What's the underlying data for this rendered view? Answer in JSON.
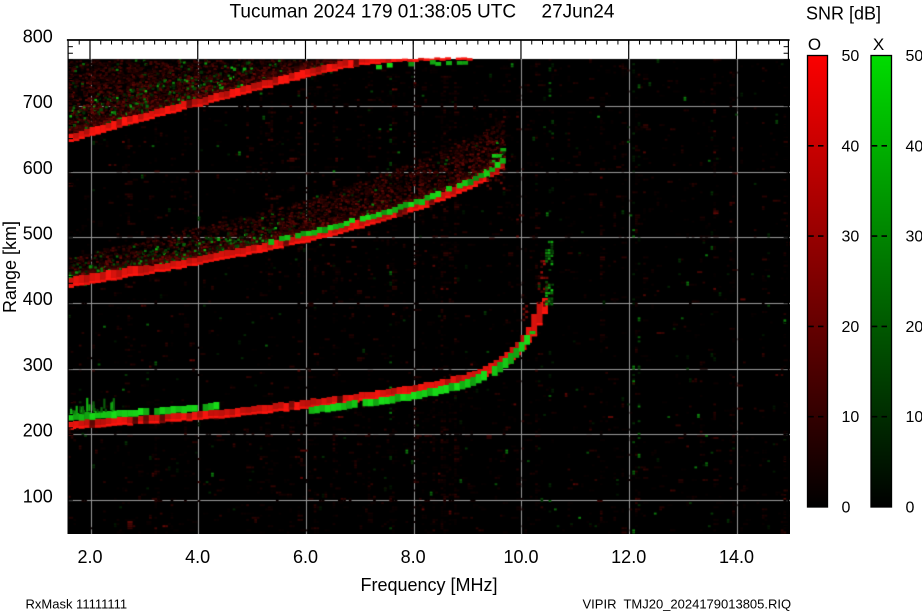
{
  "title": {
    "station_time": "Tucuman 2024 179 01:38:05 UTC",
    "date": "27Jun24"
  },
  "footer": {
    "rx_mask": "RxMask 11111111",
    "file_label": "VIPIR  TMJ20_2024179013805.RIQ"
  },
  "chart_data": {
    "type": "heatmap",
    "title": "Tucuman 2024 179 01:38:05 UTC   27Jun24",
    "xlabel": "Frequency [MHz]",
    "ylabel": "Range [km]",
    "xlim": [
      1.582,
      14.97
    ],
    "ylim": [
      48,
      771
    ],
    "axis_top_km": 800,
    "grid": "on",
    "xticks": [
      2,
      4,
      6,
      8,
      10,
      12,
      14
    ],
    "xtick_labels": [
      "2.0",
      "4.0",
      "6.0",
      "8.0",
      "10.0",
      "12.0",
      "14.0"
    ],
    "x_minor_step": 0.2,
    "yticks": [
      100,
      200,
      300,
      400,
      500,
      600,
      700,
      800
    ],
    "ytick_labels": [
      "100",
      "200",
      "300",
      "400",
      "500",
      "600",
      "700",
      "800"
    ],
    "y_minor_step": 10,
    "colorbar": {
      "title": "SNR [dB]",
      "range": [
        0,
        50
      ],
      "ticks": [
        0,
        10,
        20,
        30,
        40,
        50
      ],
      "tick_labels": [
        "0",
        "10",
        "20",
        "30",
        "40",
        "50"
      ],
      "o_label": "O",
      "x_label": "X",
      "o_color": "#fb0000",
      "x_color": "#00dc00",
      "bottom_color": "#000000"
    },
    "colors": {
      "background": "#000000",
      "grid": "#9a9a9a",
      "o_trace": "#e60000",
      "x_trace": "#1ed41e"
    },
    "traces": [
      {
        "name": "F first hop",
        "anchor": "center",
        "band_km": 12,
        "o_points": [
          [
            1.582,
            214
          ],
          [
            2,
            216.5
          ],
          [
            2.5,
            219.5
          ],
          [
            3,
            222.5
          ],
          [
            3.5,
            225.5
          ],
          [
            4,
            228.5
          ],
          [
            4.5,
            232
          ],
          [
            5,
            236
          ],
          [
            5.5,
            241
          ],
          [
            6,
            246
          ],
          [
            6.5,
            251
          ],
          [
            7,
            256.5
          ],
          [
            7.5,
            262
          ],
          [
            8,
            268
          ],
          [
            8.5,
            276
          ],
          [
            9,
            286
          ],
          [
            9.3,
            295
          ],
          [
            9.6,
            308
          ],
          [
            9.8,
            320
          ],
          [
            10,
            336
          ],
          [
            10.15,
            352
          ],
          [
            10.25,
            368
          ],
          [
            10.32,
            381
          ],
          [
            10.38,
            392
          ],
          [
            10.42,
            399
          ]
        ],
        "x_band_km": 10,
        "x_f_shift": -0.1,
        "x_segments": [
          {
            "f0": 1.582,
            "f1": 4.3,
            "offset_km": 11
          },
          {
            "f0": 6.05,
            "f1": 10.34,
            "offset_km": -11,
            "km_max": 358
          }
        ],
        "grass": {
          "f0": 1.582,
          "f1": 2.45,
          "km_above": 24
        }
      },
      {
        "name": "F second hop",
        "anchor": "bottom",
        "band_km": 11,
        "o_points": [
          [
            1.582,
            424
          ],
          [
            2,
            430
          ],
          [
            2.5,
            437
          ],
          [
            3,
            444
          ],
          [
            3.5,
            451
          ],
          [
            4,
            459
          ],
          [
            4.5,
            467
          ],
          [
            5,
            475
          ],
          [
            5.5,
            484
          ],
          [
            6,
            493
          ],
          [
            6.5,
            504
          ],
          [
            7,
            515
          ],
          [
            7.5,
            527
          ],
          [
            8,
            540
          ],
          [
            8.5,
            556
          ],
          [
            9,
            573
          ],
          [
            9.3,
            586
          ],
          [
            9.5,
            597
          ],
          [
            9.62,
            606
          ]
        ],
        "haze": {
          "km_at_fmin": 36,
          "km_at_fmax": 72,
          "fmax": 9.62,
          "density": 1.3,
          "green_p": 0.028
        },
        "x_line": {
          "f0": 5.3,
          "f1": 9.62,
          "offset_km": 9,
          "thick_km": 8
        },
        "x_speckles": {
          "f0": 1.582,
          "f1": 5.4,
          "km0": 2,
          "km1": 30
        },
        "x_tip": {
          "f0": 9.3,
          "f1": 9.62,
          "km0": 0,
          "km1": 26
        }
      },
      {
        "name": "F third hop",
        "anchor": "bottom",
        "band_km": 10,
        "o_points": [
          [
            1.582,
            645
          ],
          [
            2,
            655
          ],
          [
            2.5,
            667
          ],
          [
            3,
            679
          ],
          [
            3.5,
            690
          ],
          [
            4,
            700
          ],
          [
            4.5,
            711
          ],
          [
            5,
            722
          ],
          [
            5.5,
            733
          ],
          [
            6,
            744
          ],
          [
            6.5,
            754
          ],
          [
            7,
            762
          ],
          [
            7.5,
            766
          ],
          [
            8,
            768
          ],
          [
            8.5,
            769.3
          ],
          [
            9,
            770
          ]
        ],
        "haze": {
          "fill_to_km": 771,
          "fmax": 6.9,
          "density": 1.5,
          "green_p": 0.03
        },
        "x_line": {
          "f0": 7.3,
          "f1": 8.95,
          "offset_km": -7,
          "thick_km": 6,
          "gap_p": 0.4
        },
        "x_speckles": {
          "f0": 1.582,
          "f1": 4.9,
          "km0": 3,
          "km1": 46
        }
      }
    ],
    "spread_patches": [
      {
        "f0": 10.02,
        "f1": 10.12,
        "km0": 376,
        "km1": 400,
        "mode": "o",
        "density": 0.45,
        "bright": 0.75
      },
      {
        "f0": 10.3,
        "f1": 10.47,
        "km0": 398,
        "km1": 468,
        "mode": "o",
        "density": 0.28,
        "bright": 0.8
      },
      {
        "f0": 10.44,
        "f1": 10.57,
        "km0": 400,
        "km1": 437,
        "mode": "x",
        "density": 0.55,
        "bright": 1
      },
      {
        "f0": 10.44,
        "f1": 10.58,
        "km0": 461,
        "km1": 497,
        "mode": "x",
        "density": 0.55,
        "bright": 1
      },
      {
        "f0": 9.35,
        "f1": 9.66,
        "km0": 576,
        "km1": 622,
        "mode": "o",
        "density": 0.3,
        "bright": 0.55
      },
      {
        "f0": 1.582,
        "f1": 1.78,
        "km0": 193,
        "km1": 211,
        "mode": "o",
        "density": 0.35,
        "bright": 0.45
      }
    ],
    "green_noise_columns": [
      {
        "f": 6.32,
        "p": 0.035
      },
      {
        "f": 7.55,
        "p": 0.06
      },
      {
        "f": 10.52,
        "p": 0.05
      },
      {
        "f": 10.6,
        "p": 0.03
      },
      {
        "f": 12.07,
        "p": 0.09
      },
      {
        "f": 12.16,
        "p": 0.07
      },
      {
        "f": 13.55,
        "p": 0.03
      },
      {
        "f": 14.6,
        "p": 0.02
      }
    ],
    "noise": {
      "red_p": 0.042,
      "green_p": 0.004,
      "streak_fraction": 0.16,
      "seed": 20241790
    }
  }
}
